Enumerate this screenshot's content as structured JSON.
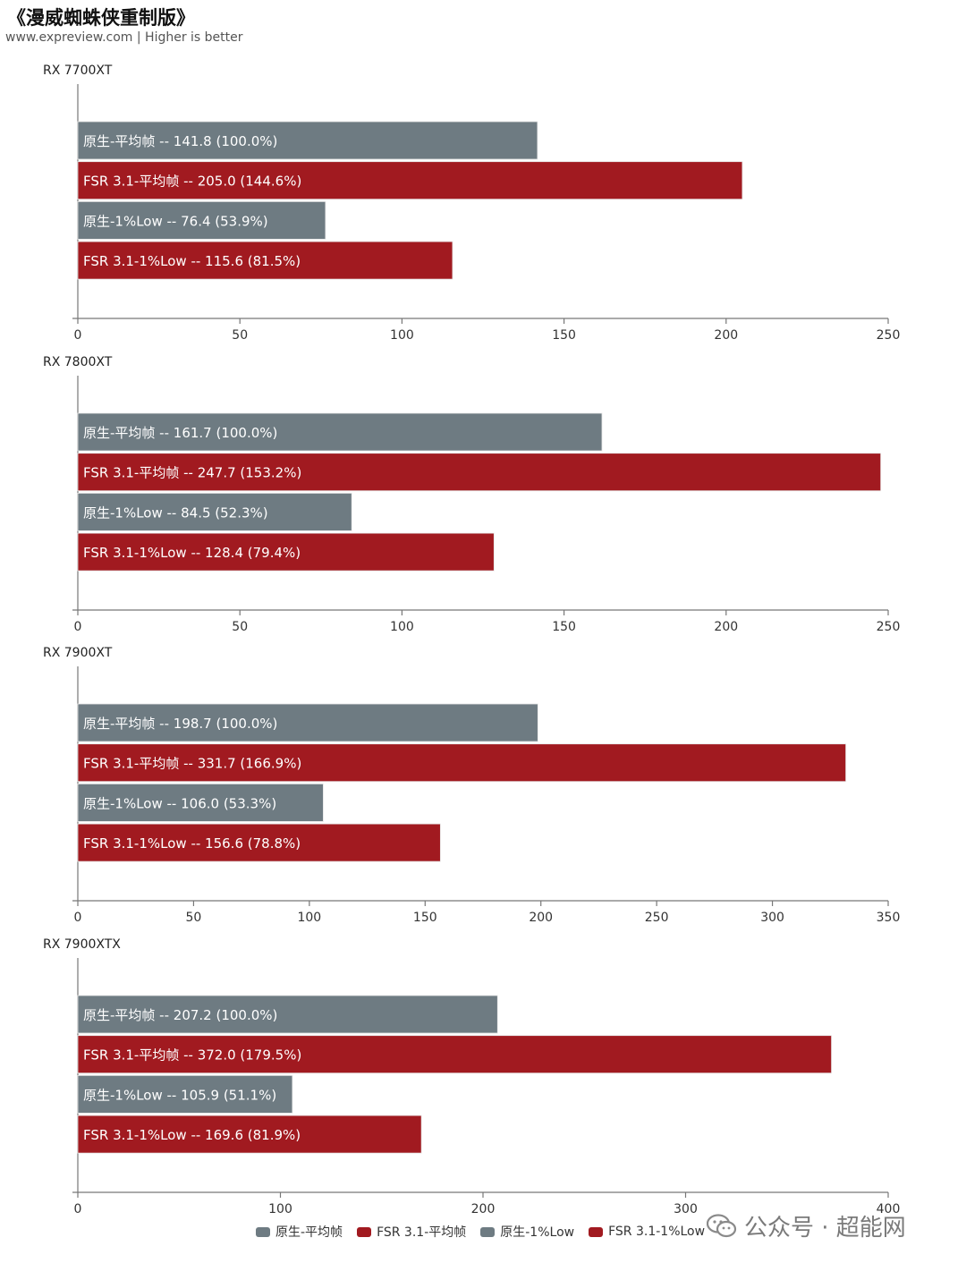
{
  "header": {
    "title": "《漫威蜘蛛侠重制版》",
    "subtitle": "www.expreview.com | Higher is better"
  },
  "legend": [
    {
      "label": "原生-平均帧",
      "color": "#6e7b82"
    },
    {
      "label": "FSR 3.1-平均帧",
      "color": "#a11a20"
    },
    {
      "label": "原生-1%Low",
      "color": "#6e7b82"
    },
    {
      "label": "FSR 3.1-1%Low",
      "color": "#a11a20"
    }
  ],
  "watermark": {
    "text": "公众号 · 超能网",
    "icon": "wechat-icon"
  },
  "chart_data": [
    {
      "type": "bar",
      "title": "RX 7700XT",
      "orientation": "horizontal",
      "xlim": [
        0,
        250
      ],
      "ticks": [
        0,
        50,
        100,
        150,
        200,
        250
      ],
      "bars": [
        {
          "series": "原生-平均帧",
          "value": 141.8,
          "label": "原生-平均帧  --  141.8 (100.0%)"
        },
        {
          "series": "FSR 3.1-平均帧",
          "value": 205.0,
          "label": "FSR 3.1-平均帧  --  205.0 (144.6%)"
        },
        {
          "series": "原生-1%Low",
          "value": 76.4,
          "label": "原生-1%Low  --  76.4 (53.9%)"
        },
        {
          "series": "FSR 3.1-1%Low",
          "value": 115.6,
          "label": "FSR 3.1-1%Low  --  115.6 (81.5%)"
        }
      ]
    },
    {
      "type": "bar",
      "title": "RX 7800XT",
      "orientation": "horizontal",
      "xlim": [
        0,
        250
      ],
      "ticks": [
        0,
        50,
        100,
        150,
        200,
        250
      ],
      "bars": [
        {
          "series": "原生-平均帧",
          "value": 161.7,
          "label": "原生-平均帧  --  161.7 (100.0%)"
        },
        {
          "series": "FSR 3.1-平均帧",
          "value": 247.7,
          "label": "FSR 3.1-平均帧  --  247.7 (153.2%)"
        },
        {
          "series": "原生-1%Low",
          "value": 84.5,
          "label": "原生-1%Low  --  84.5 (52.3%)"
        },
        {
          "series": "FSR 3.1-1%Low",
          "value": 128.4,
          "label": "FSR 3.1-1%Low  --  128.4 (79.4%)"
        }
      ]
    },
    {
      "type": "bar",
      "title": "RX 7900XT",
      "orientation": "horizontal",
      "xlim": [
        0,
        350
      ],
      "ticks": [
        0,
        50,
        100,
        150,
        200,
        250,
        300,
        350
      ],
      "bars": [
        {
          "series": "原生-平均帧",
          "value": 198.7,
          "label": "原生-平均帧  --  198.7 (100.0%)"
        },
        {
          "series": "FSR 3.1-平均帧",
          "value": 331.7,
          "label": "FSR 3.1-平均帧  --  331.7 (166.9%)"
        },
        {
          "series": "原生-1%Low",
          "value": 106.0,
          "label": "原生-1%Low  --  106.0 (53.3%)"
        },
        {
          "series": "FSR 3.1-1%Low",
          "value": 156.6,
          "label": "FSR 3.1-1%Low  --  156.6 (78.8%)"
        }
      ]
    },
    {
      "type": "bar",
      "title": "RX 7900XTX",
      "orientation": "horizontal",
      "xlim": [
        0,
        400
      ],
      "ticks": [
        0,
        100,
        200,
        300,
        400
      ],
      "bars": [
        {
          "series": "原生-平均帧",
          "value": 207.2,
          "label": "原生-平均帧  --  207.2 (100.0%)"
        },
        {
          "series": "FSR 3.1-平均帧",
          "value": 372.0,
          "label": "FSR 3.1-平均帧  --  372.0 (179.5%)"
        },
        {
          "series": "原生-1%Low",
          "value": 105.9,
          "label": "原生-1%Low  --  105.9 (51.1%)"
        },
        {
          "series": "FSR 3.1-1%Low",
          "value": 169.6,
          "label": "FSR 3.1-1%Low  --  169.6 (81.9%)"
        }
      ]
    }
  ]
}
